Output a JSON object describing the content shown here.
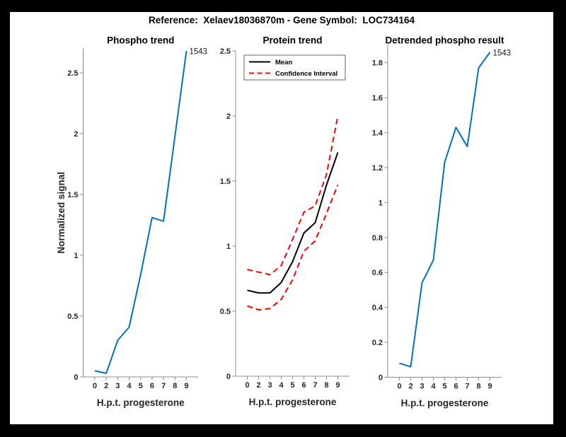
{
  "figure": {
    "title": "Reference:  Xelaev18036870m - Gene Symbol:  LOC734164",
    "outer_background": "#000000",
    "figure_background": "#ffffff",
    "axis_color": "#8c8c8c",
    "tick_label_color": "#262626"
  },
  "chart_data": [
    {
      "type": "line",
      "title": "Phospho trend",
      "xlabel": "H.p.t. progesterone",
      "ylabel": "Normalized signal",
      "x_ticklabels": [
        "0",
        "2",
        "3",
        "4",
        "5",
        "6",
        "7",
        "8",
        "9"
      ],
      "y_ticks": [
        0,
        0.5,
        1,
        1.5,
        2,
        2.5
      ],
      "y_ticklabels": [
        "0",
        "0.5",
        "1",
        "1.5",
        "2",
        "2.5"
      ],
      "ylim": [
        0,
        2.7
      ],
      "grid": false,
      "legend": null,
      "annotation": {
        "text": "1543",
        "at": "last-point"
      },
      "series": [
        {
          "name": "phospho-signal",
          "color": "#0072BD",
          "style": "solid",
          "values": [
            0.05,
            0.03,
            0.3,
            0.41,
            0.84,
            1.31,
            1.28,
            1.98,
            2.68
          ]
        }
      ]
    },
    {
      "type": "line",
      "title": "Protein trend",
      "xlabel": "H.p.t. progesterone",
      "ylabel": null,
      "x_ticklabels": [
        "0",
        "2",
        "3",
        "4",
        "5",
        "6",
        "7",
        "8",
        "9"
      ],
      "y_ticks": [
        0,
        0.5,
        1,
        1.5,
        2,
        2.5
      ],
      "y_ticklabels": [
        "0",
        "0.5",
        "1",
        "1.5",
        "2",
        "2.5"
      ],
      "ylim": [
        0,
        2.5
      ],
      "grid": false,
      "legend": {
        "position": "northwest",
        "entries": [
          {
            "label": "Mean",
            "color": "#000000",
            "style": "solid"
          },
          {
            "label": "Confidence Interval",
            "color": "#ff0000",
            "style": "dashed"
          }
        ]
      },
      "annotation": null,
      "series": [
        {
          "name": "confidence-upper",
          "color": "#ff0000",
          "style": "dashed",
          "values": [
            0.82,
            0.8,
            0.78,
            0.85,
            1.05,
            1.26,
            1.31,
            1.55,
            2.0
          ]
        },
        {
          "name": "confidence-lower",
          "color": "#ff0000",
          "style": "dashed",
          "values": [
            0.54,
            0.51,
            0.52,
            0.59,
            0.74,
            0.96,
            1.04,
            1.25,
            1.47
          ]
        },
        {
          "name": "mean",
          "color": "#000000",
          "style": "solid",
          "values": [
            0.66,
            0.64,
            0.64,
            0.72,
            0.88,
            1.1,
            1.18,
            1.47,
            1.72
          ]
        }
      ]
    },
    {
      "type": "line",
      "title": "Detrended phospho result",
      "xlabel": "H.p.t. progesterone",
      "ylabel": null,
      "x_ticklabels": [
        "0",
        "2",
        "3",
        "4",
        "5",
        "6",
        "7",
        "8",
        "9"
      ],
      "y_ticks": [
        0,
        0.2,
        0.4,
        0.6,
        0.8,
        1,
        1.2,
        1.4,
        1.6,
        1.8
      ],
      "y_ticklabels": [
        "0",
        "0.2",
        "0.4",
        "0.6",
        "0.8",
        "1",
        "1.2",
        "1.4",
        "1.6",
        "1.8"
      ],
      "ylim": [
        0,
        1.9
      ],
      "grid": false,
      "legend": null,
      "annotation": {
        "text": "1543",
        "at": "last-point"
      },
      "series": [
        {
          "name": "detrended-phospho",
          "color": "#0072BD",
          "style": "solid",
          "values": [
            0.08,
            0.06,
            0.54,
            0.67,
            1.23,
            1.43,
            1.32,
            1.77,
            1.86
          ]
        }
      ]
    }
  ]
}
